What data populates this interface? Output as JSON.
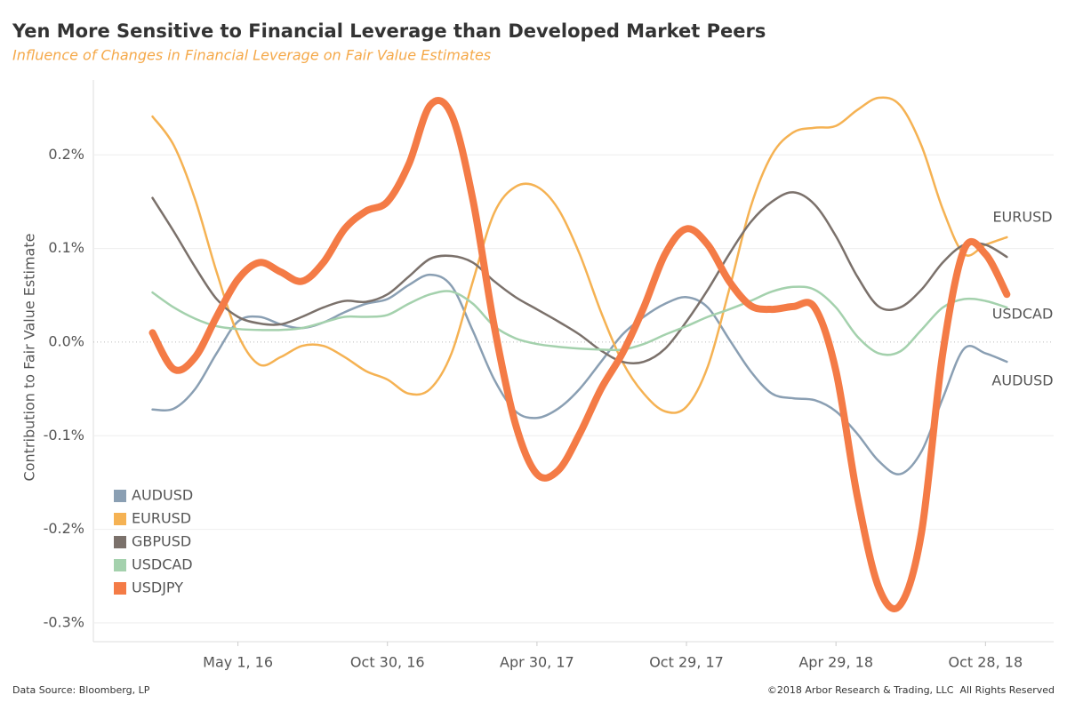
{
  "chart_data": {
    "type": "line",
    "title": "Yen More Sensitive to Financial Leverage than Developed Market Peers",
    "subtitle": "Influence of Changes in Financial Leverage on Fair Value Estimates",
    "y_label": "Contribution to Fair Value Estimate",
    "source": "Data Source: Bloomberg, LP",
    "copyright": "©2018 Arbor Research & Trading, LLC  All Rights Reserved",
    "x": [
      "2016-01-18",
      "2016-02-13",
      "2016-03-10",
      "2016-04-05",
      "2016-05-01",
      "2016-05-27",
      "2016-06-22",
      "2016-07-18",
      "2016-08-13",
      "2016-09-08",
      "2016-10-04",
      "2016-10-30",
      "2016-11-25",
      "2016-12-21",
      "2017-01-16",
      "2017-02-11",
      "2017-03-09",
      "2017-04-04",
      "2017-04-30",
      "2017-05-26",
      "2017-06-21",
      "2017-07-17",
      "2017-08-12",
      "2017-09-07",
      "2017-10-03",
      "2017-10-29",
      "2017-11-24",
      "2017-12-20",
      "2018-01-15",
      "2018-02-10",
      "2018-03-08",
      "2018-04-03",
      "2018-04-29",
      "2018-05-25",
      "2018-06-20",
      "2018-07-16",
      "2018-08-11",
      "2018-09-06",
      "2018-10-02",
      "2018-10-28",
      "2018-11-23"
    ],
    "series": [
      {
        "name": "AUDUSD",
        "color": "#8a9fb3",
        "width": 2.5,
        "end_label": true,
        "values": [
          -0.072,
          -0.071,
          -0.05,
          -0.012,
          0.022,
          0.027,
          0.019,
          0.015,
          0.021,
          0.032,
          0.041,
          0.046,
          0.061,
          0.072,
          0.06,
          0.012,
          -0.04,
          -0.074,
          -0.081,
          -0.071,
          -0.05,
          -0.021,
          0.008,
          0.027,
          0.041,
          0.048,
          0.037,
          0.003,
          -0.031,
          -0.055,
          -0.06,
          -0.062,
          -0.074,
          -0.098,
          -0.127,
          -0.141,
          -0.117,
          -0.06,
          -0.007,
          -0.012,
          -0.021
        ]
      },
      {
        "name": "EURUSD",
        "color": "#f5b253",
        "width": 2.5,
        "end_label": true,
        "values": [
          0.241,
          0.21,
          0.152,
          0.075,
          0.008,
          -0.024,
          -0.016,
          -0.004,
          -0.004,
          -0.016,
          -0.031,
          -0.04,
          -0.055,
          -0.05,
          -0.012,
          0.065,
          0.138,
          0.166,
          0.166,
          0.142,
          0.094,
          0.032,
          -0.021,
          -0.055,
          -0.074,
          -0.069,
          -0.026,
          0.056,
          0.144,
          0.2,
          0.224,
          0.229,
          0.231,
          0.248,
          0.261,
          0.253,
          0.21,
          0.142,
          0.094,
          0.104,
          0.112
        ]
      },
      {
        "name": "GBPUSD",
        "color": "#7b716b",
        "width": 2.5,
        "end_label": false,
        "values": [
          0.154,
          0.118,
          0.08,
          0.046,
          0.027,
          0.02,
          0.019,
          0.027,
          0.037,
          0.044,
          0.043,
          0.051,
          0.07,
          0.089,
          0.092,
          0.085,
          0.065,
          0.048,
          0.035,
          0.022,
          0.008,
          -0.009,
          -0.021,
          -0.021,
          -0.007,
          0.022,
          0.056,
          0.094,
          0.128,
          0.15,
          0.16,
          0.147,
          0.113,
          0.07,
          0.038,
          0.037,
          0.056,
          0.085,
          0.104,
          0.104,
          0.091
        ]
      },
      {
        "name": "USDCAD",
        "color": "#a4d1ad",
        "width": 2.5,
        "end_label": true,
        "values": [
          0.053,
          0.037,
          0.025,
          0.017,
          0.014,
          0.013,
          0.013,
          0.015,
          0.021,
          0.027,
          0.027,
          0.029,
          0.041,
          0.051,
          0.054,
          0.041,
          0.017,
          0.004,
          -0.002,
          -0.005,
          -0.007,
          -0.008,
          -0.008,
          -0.002,
          0.008,
          0.017,
          0.027,
          0.035,
          0.044,
          0.054,
          0.059,
          0.056,
          0.037,
          0.006,
          -0.012,
          -0.01,
          0.013,
          0.037,
          0.046,
          0.044,
          0.037
        ]
      },
      {
        "name": "USDJPY",
        "color": "#f47b46",
        "width": 8,
        "end_label": false,
        "values": [
          0.01,
          -0.029,
          -0.016,
          0.027,
          0.067,
          0.085,
          0.075,
          0.065,
          0.085,
          0.121,
          0.14,
          0.15,
          0.19,
          0.253,
          0.243,
          0.152,
          0.017,
          -0.088,
          -0.141,
          -0.137,
          -0.098,
          -0.05,
          -0.012,
          0.037,
          0.094,
          0.121,
          0.104,
          0.065,
          0.039,
          0.035,
          0.038,
          0.037,
          -0.031,
          -0.165,
          -0.262,
          -0.281,
          -0.204,
          -0.012,
          0.099,
          0.094,
          0.051
        ]
      }
    ],
    "xlim": [
      "2015-11-07",
      "2019-01-19"
    ],
    "xticks": [
      {
        "value": "2016-05-01",
        "label": "May 1, 16"
      },
      {
        "value": "2016-10-30",
        "label": "Oct 30, 16"
      },
      {
        "value": "2017-04-30",
        "label": "Apr 30, 17"
      },
      {
        "value": "2017-10-29",
        "label": "Oct 29, 17"
      },
      {
        "value": "2018-04-29",
        "label": "Apr 29, 18"
      },
      {
        "value": "2018-10-28",
        "label": "Oct 28, 18"
      }
    ],
    "ylim": [
      -0.32,
      0.28
    ],
    "yticks": [
      {
        "value": -0.3,
        "label": "-0.3%"
      },
      {
        "value": -0.2,
        "label": "-0.2%"
      },
      {
        "value": -0.1,
        "label": "-0.1%"
      },
      {
        "value": 0,
        "label": "0.0%"
      },
      {
        "value": 0.1,
        "label": "0.1%"
      },
      {
        "value": 0.2,
        "label": "0.2%"
      }
    ],
    "grid": true,
    "legend": "lower left"
  }
}
